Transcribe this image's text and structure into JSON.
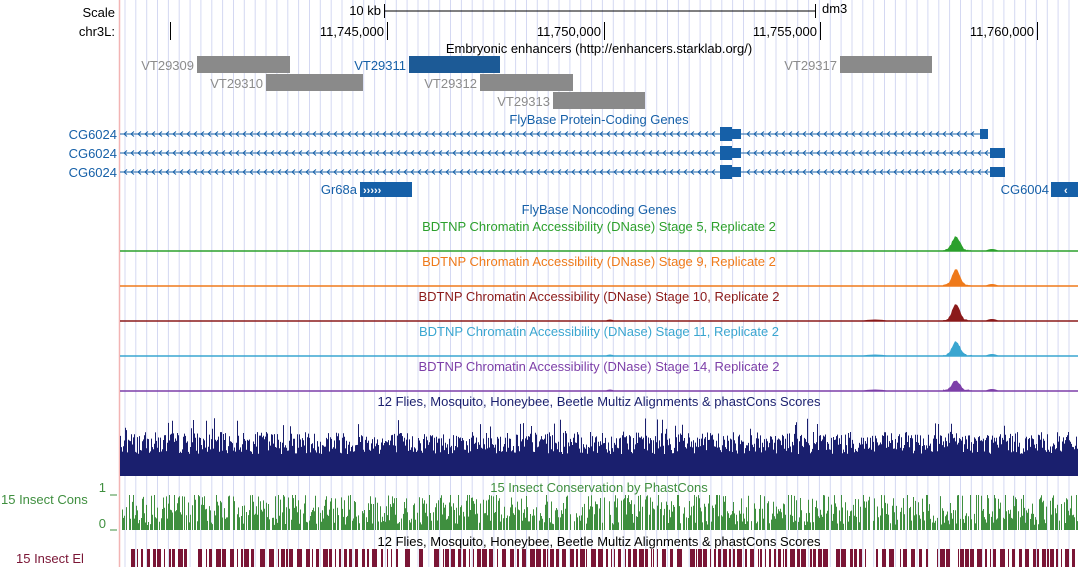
{
  "ruler": {
    "scale_label": "Scale",
    "scale_value": "10 kb",
    "assembly": "dm3",
    "chrom_label": "chr3L:",
    "positions": [
      "11,745,000",
      "11,750,000",
      "11,755,000",
      "11,760,000"
    ]
  },
  "tracks": {
    "enhancers": {
      "title": "Embryonic enhancers (http://enhancers.starklab.org/)",
      "items": [
        {
          "label": "VT29309",
          "highlight": false
        },
        {
          "label": "VT29310",
          "highlight": false
        },
        {
          "label": "VT29311",
          "highlight": true
        },
        {
          "label": "VT29312",
          "highlight": false
        },
        {
          "label": "VT29313",
          "highlight": false
        },
        {
          "label": "VT29317",
          "highlight": false
        }
      ]
    },
    "coding_genes": {
      "title": "FlyBase Protein-Coding Genes",
      "transcripts": [
        "CG6024",
        "CG6024",
        "CG6024"
      ],
      "gr68a": "Gr68a",
      "cg6004": "CG6004"
    },
    "noncoding_genes": {
      "title": "FlyBase Noncoding Genes"
    },
    "dnase": [
      {
        "title": "BDTNP Chromatin Accessibility (DNase) Stage 5, Replicate 2",
        "color": "#2ca02c"
      },
      {
        "title": "BDTNP Chromatin Accessibility (DNase) Stage 9, Replicate 2",
        "color": "#ef7a1a"
      },
      {
        "title": "BDTNP Chromatin Accessibility (DNase) Stage 10, Replicate 2",
        "color": "#8b1a1a"
      },
      {
        "title": "BDTNP Chromatin Accessibility (DNase) Stage 11, Replicate 2",
        "color": "#3aa6d0"
      },
      {
        "title": "BDTNP Chromatin Accessibility (DNase) Stage 14, Replicate 2",
        "color": "#7d3fa8"
      }
    ],
    "multiz": {
      "title": "12 Flies, Mosquito, Honeybee, Beetle Multiz Alignments & phastCons Scores",
      "color": "#1a1f6e"
    },
    "cons": {
      "title": "15 Insect Conservation by PhastCons",
      "left_label": "15 Insect Cons",
      "max": "1",
      "min": "0",
      "color": "#3f8f3f"
    },
    "elements": {
      "title": "12 Flies, Mosquito, Honeybee, Beetle Multiz Alignments & phastCons Scores",
      "left_label": "15 Insect El",
      "color": "#7a1535"
    }
  },
  "colors": {
    "gene_blue": "#1660a8",
    "enh_gray": "#8a8a8a",
    "enh_label_gray": "#8c8c8c",
    "grid": "#d4d8f2",
    "left_border": "#f2b4b4"
  }
}
